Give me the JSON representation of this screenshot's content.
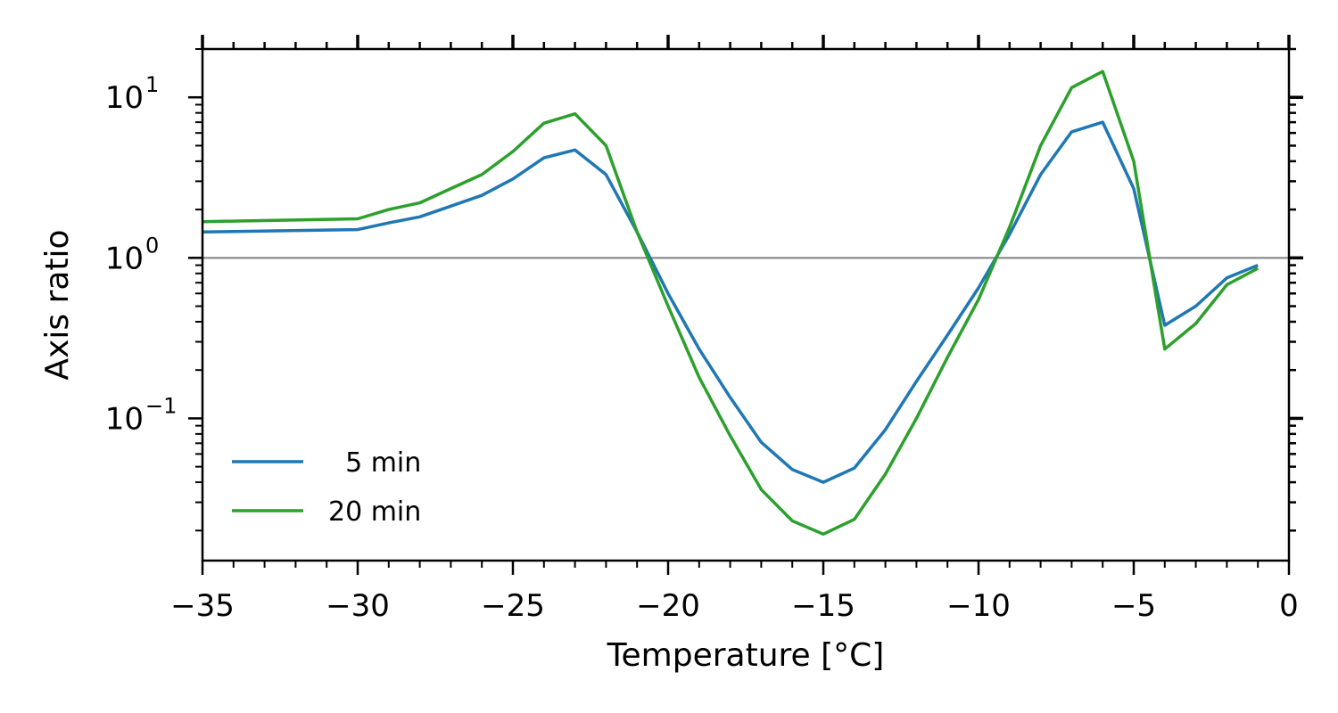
{
  "chart_data": {
    "type": "line",
    "xlabel": "Temperature [°C]",
    "ylabel": "Axis ratio",
    "xlim": [
      -35,
      0
    ],
    "ylim": [
      0.013,
      20
    ],
    "yscale": "log",
    "x_ticks": [
      {
        "value": -35,
        "label": "−35"
      },
      {
        "value": -30,
        "label": "−30"
      },
      {
        "value": -25,
        "label": "−25"
      },
      {
        "value": -20,
        "label": "−20"
      },
      {
        "value": -15,
        "label": "−15"
      },
      {
        "value": -10,
        "label": "−10"
      },
      {
        "value": -5,
        "label": "−5"
      },
      {
        "value": 0,
        "label": "0"
      }
    ],
    "y_ticks": [
      {
        "value": 10,
        "base": "10",
        "exp": "1"
      },
      {
        "value": 1,
        "base": "10",
        "exp": "0"
      },
      {
        "value": 0.1,
        "base": "10",
        "exp": "−1"
      }
    ],
    "reference_line": {
      "y": 1,
      "color": "#808080"
    },
    "legend": {
      "position": "lower-left"
    },
    "grid": false,
    "series": [
      {
        "name": "  5 min",
        "color": "#1f77b4",
        "x": [
          -35,
          -30,
          -29,
          -28,
          -27,
          -26,
          -25,
          -24,
          -23,
          -22,
          -21,
          -20,
          -19,
          -18,
          -17,
          -16,
          -15,
          -14,
          -13,
          -12,
          -11,
          -10,
          -9,
          -8,
          -7,
          -6,
          -5,
          -4,
          -3,
          -2,
          -1
        ],
        "y": [
          1.45,
          1.5,
          1.65,
          1.8,
          2.1,
          2.45,
          3.1,
          4.2,
          4.7,
          3.3,
          1.45,
          0.6,
          0.27,
          0.135,
          0.071,
          0.048,
          0.04,
          0.049,
          0.085,
          0.17,
          0.33,
          0.65,
          1.4,
          3.3,
          6.1,
          7.0,
          2.7,
          0.38,
          0.5,
          0.75,
          0.9
        ]
      },
      {
        "name": "20 min",
        "color": "#2ca02c",
        "x": [
          -35,
          -30,
          -29,
          -28,
          -27,
          -26,
          -25,
          -24,
          -23,
          -22,
          -21,
          -20,
          -19,
          -18,
          -17,
          -16,
          -15,
          -14,
          -13,
          -12,
          -11,
          -10,
          -9,
          -8,
          -7,
          -6,
          -5,
          -4,
          -3,
          -2,
          -1
        ],
        "y": [
          1.68,
          1.75,
          2.0,
          2.2,
          2.7,
          3.3,
          4.6,
          6.9,
          7.9,
          5.0,
          1.45,
          0.5,
          0.18,
          0.078,
          0.036,
          0.023,
          0.019,
          0.0235,
          0.045,
          0.1,
          0.24,
          0.55,
          1.55,
          5.0,
          11.5,
          14.5,
          4.0,
          0.27,
          0.39,
          0.68,
          0.86
        ]
      }
    ]
  }
}
